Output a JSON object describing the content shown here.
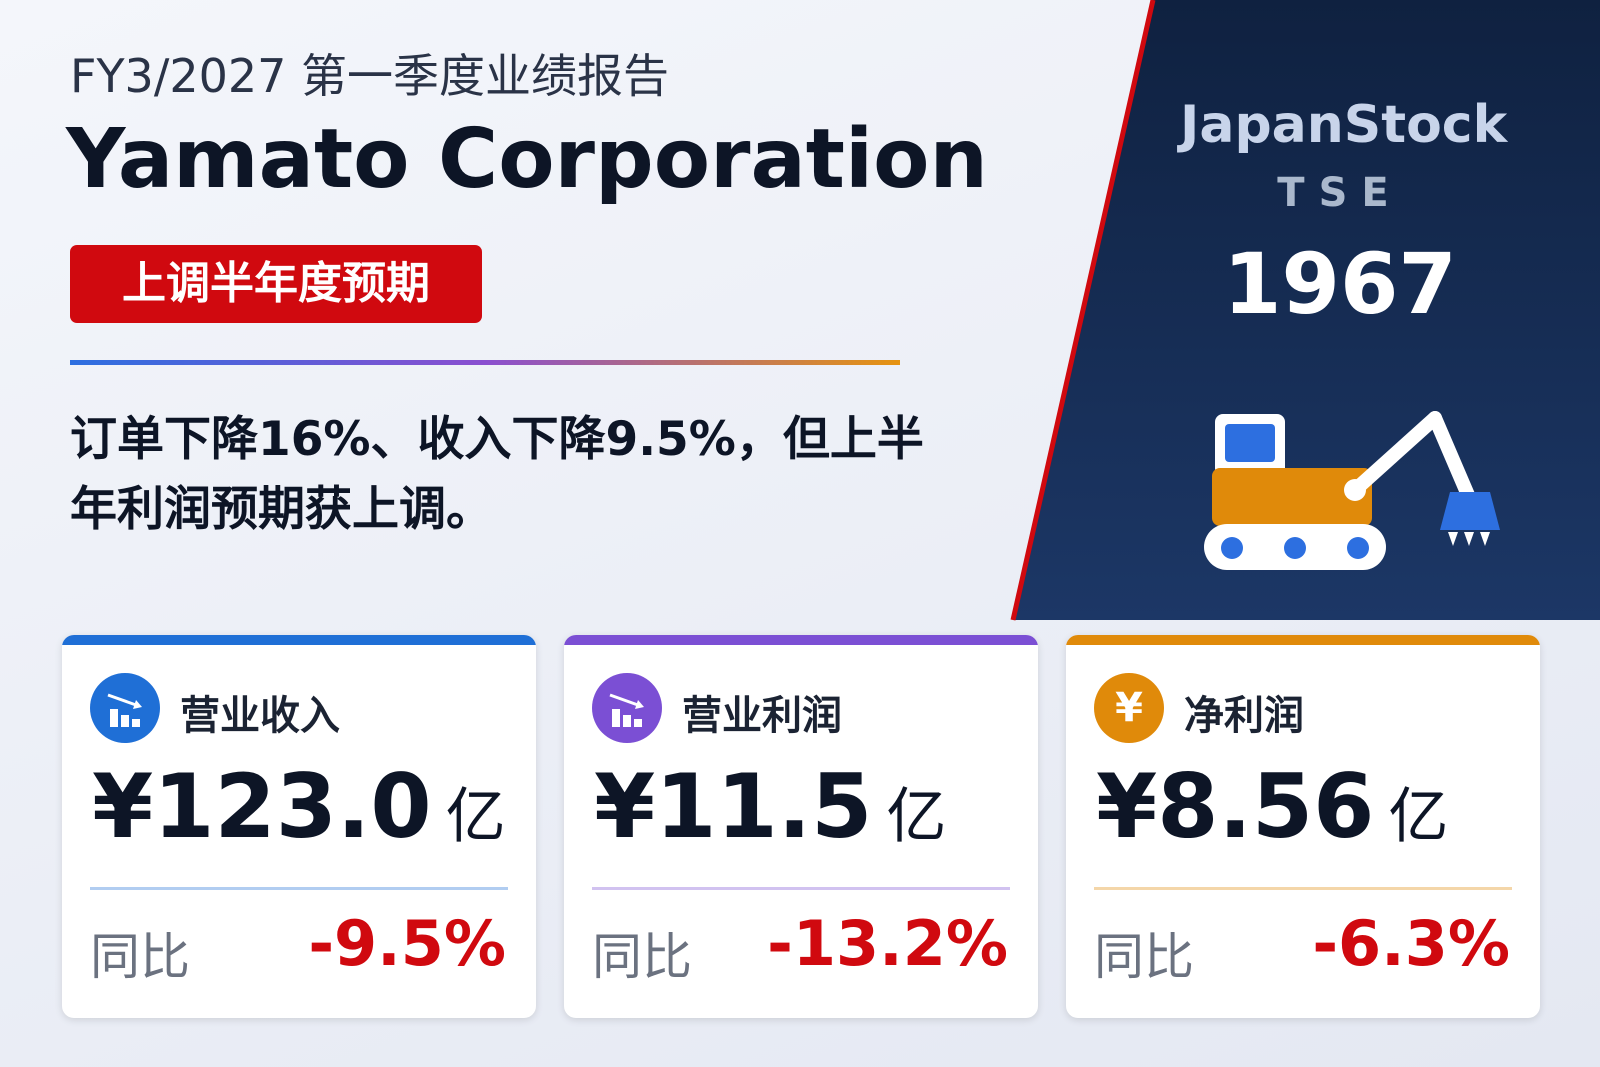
{
  "header": {
    "period": "FY3/2027 第一季度业绩报告",
    "company": "Yamato Corporation",
    "badge": "上调半年度预期"
  },
  "summary": "订单下降16%、收入下降9.5%，但上半年利润预期获上调。",
  "brand": {
    "site": "JapanStock",
    "exchange": "TSE",
    "code": "1967"
  },
  "cards": [
    {
      "title": "营业收入",
      "value": "¥123.0",
      "unit": "亿",
      "yoy_label": "同比",
      "yoy": "-9.5%",
      "color": "#1f6fd6"
    },
    {
      "title": "营业利润",
      "value": "¥11.5",
      "unit": "亿",
      "yoy_label": "同比",
      "yoy": "-13.2%",
      "color": "#7b4fd4"
    },
    {
      "title": "净利润",
      "icon": "¥",
      "value": "¥8.56",
      "unit": "亿",
      "yoy_label": "同比",
      "yoy": "-6.3%",
      "color": "#e08a0a"
    }
  ]
}
